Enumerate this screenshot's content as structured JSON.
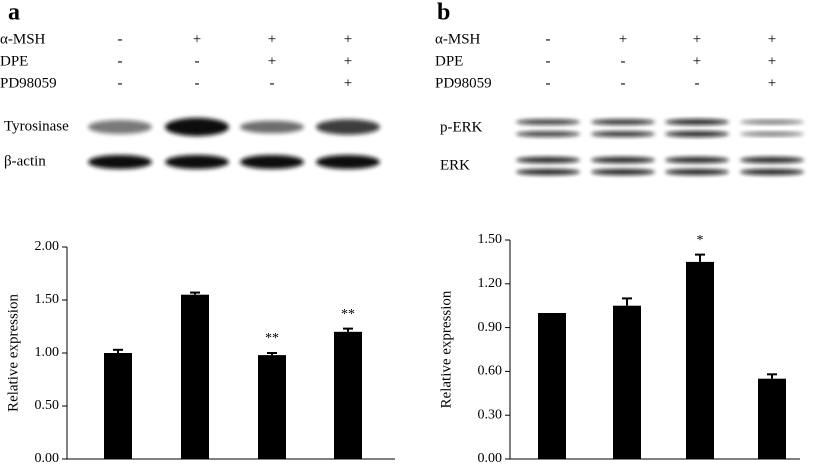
{
  "panels": [
    {
      "label": "a",
      "treatments": [
        {
          "name": "α-MSH",
          "signs": [
            "-",
            "+",
            "+",
            "+"
          ]
        },
        {
          "name": "DPE",
          "signs": [
            "-",
            "-",
            "+",
            "+"
          ]
        },
        {
          "name": "PD98059",
          "signs": [
            "-",
            "-",
            "-",
            "+"
          ]
        }
      ],
      "blots": [
        "Tyrosinase",
        "β-actin"
      ]
    },
    {
      "label": "b",
      "treatments": [
        {
          "name": "α-MSH",
          "signs": [
            "-",
            "+",
            "+",
            "+"
          ]
        },
        {
          "name": "DPE",
          "signs": [
            "-",
            "-",
            "+",
            "+"
          ]
        },
        {
          "name": "PD98059",
          "signs": [
            "-",
            "-",
            "-",
            "+"
          ]
        }
      ],
      "blots": [
        "p-ERK",
        "ERK"
      ]
    }
  ],
  "chart_data": [
    {
      "type": "bar",
      "y_label": "Relative expression",
      "categories": [
        null,
        null,
        null,
        null
      ],
      "values": [
        1.0,
        1.55,
        0.98,
        1.2
      ],
      "errors": [
        0.03,
        0.02,
        0.02,
        0.03
      ],
      "annotations": [
        null,
        null,
        "**",
        "**"
      ],
      "color": "#000000",
      "ylim": [
        0,
        2
      ],
      "yticks": [
        {
          "value": 0,
          "label": "0.00"
        },
        {
          "value": 0.5,
          "label": "0.50"
        },
        {
          "value": 1,
          "label": "1.00"
        },
        {
          "value": 1.5,
          "label": "1.50"
        },
        {
          "value": 2,
          "label": "2.00"
        }
      ]
    },
    {
      "type": "bar",
      "y_label": "Relative expression",
      "categories": [
        null,
        null,
        null,
        null
      ],
      "values": [
        1.0,
        1.05,
        1.35,
        0.55
      ],
      "errors": [
        0,
        0.05,
        0.05,
        0.03
      ],
      "annotations": [
        null,
        null,
        "*",
        null
      ],
      "color": "#000000",
      "ylim": [
        0,
        1.5
      ],
      "yticks": [
        {
          "value": 0,
          "label": "0.00"
        },
        {
          "value": 0.3,
          "label": "0.30"
        },
        {
          "value": 0.6,
          "label": "0.60"
        },
        {
          "value": 0.9,
          "label": "0.90"
        },
        {
          "value": 1.2,
          "label": "1.20"
        },
        {
          "value": 1.5,
          "label": "1.50"
        }
      ]
    }
  ]
}
